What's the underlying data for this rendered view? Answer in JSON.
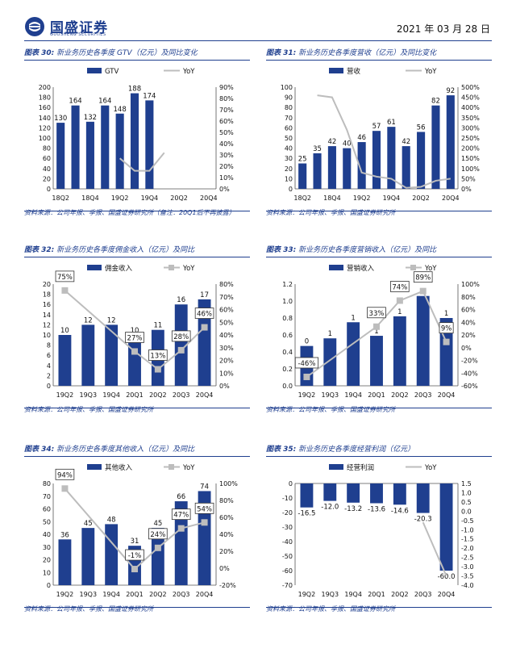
{
  "header": {
    "brand_cn": "国盛证券",
    "brand_en": "GUOSHENG SECURITIES",
    "date": "2021 年 03 月 28 日"
  },
  "colors": {
    "bar": "#1f3f8f",
    "yoy": "#bdbdbd",
    "rule": "#1f3f8f"
  },
  "panels": [
    {
      "fig": "图表 30:",
      "title": "新业务历史各季度 GTV（亿元）及同比变化",
      "source": "资料来源：公司年报、季报、国盛证券研究所（备注：20Q1后不再披露）",
      "chart_data": {
        "type": "bar+line",
        "categories": [
          "18Q2",
          "18Q3",
          "18Q4",
          "19Q1",
          "19Q2",
          "19Q3",
          "19Q4",
          "20Q1",
          "20Q2",
          "20Q3",
          "20Q4"
        ],
        "tick_labels": [
          "18Q2",
          "18Q4",
          "19Q2",
          "19Q4",
          "20Q2",
          "20Q4"
        ],
        "bar_series": {
          "name": "GTV",
          "values": [
            130,
            164,
            132,
            164,
            148,
            188,
            174,
            null,
            null,
            null,
            null
          ]
        },
        "line_series": {
          "name": "YoY",
          "values": [
            null,
            null,
            null,
            null,
            0.27,
            0.16,
            0.16,
            0.32,
            null,
            null,
            null
          ]
        },
        "bar_labels": [
          "130",
          "164",
          "132",
          "164",
          "148",
          "188",
          "174",
          "",
          "",
          "",
          ""
        ],
        "y_left": [
          0,
          200,
          20
        ],
        "y_right": [
          0,
          90,
          10
        ],
        "y_right_fmt": "pct"
      }
    },
    {
      "fig": "图表 31:",
      "title": "新业务历史各季度营收（亿元）及同比变化",
      "source": "资料来源：公司年报、季报、国盛证券研究所",
      "chart_data": {
        "type": "bar+line",
        "categories": [
          "18Q2",
          "18Q3",
          "18Q4",
          "19Q1",
          "19Q2",
          "19Q3",
          "19Q4",
          "20Q1",
          "20Q2",
          "20Q3",
          "20Q4"
        ],
        "tick_labels": [
          "18Q2",
          "18Q4",
          "19Q2",
          "19Q4",
          "20Q2",
          "20Q4"
        ],
        "bar_series": {
          "name": "营收",
          "values": [
            25,
            35,
            42,
            40,
            46,
            57,
            61,
            42,
            56,
            82,
            92
          ]
        },
        "line_series": {
          "name": "YoY",
          "values": [
            null,
            4.6,
            4.5,
            2.9,
            0.8,
            0.6,
            0.5,
            0.05,
            0.1,
            0.4,
            0.5
          ]
        },
        "bar_labels": [
          "25",
          "35",
          "42",
          "40",
          "46",
          "57",
          "61",
          "42",
          "56",
          "82",
          "92"
        ],
        "y_left": [
          0,
          100,
          10
        ],
        "y_right": [
          0,
          5,
          0.5
        ],
        "y_right_fmt": "pct"
      }
    },
    {
      "fig": "图表 32:",
      "title": "新业务历史各季度佣金收入（亿元）及同比",
      "source": "资料来源：公司年报、季报、国盛证券研究所",
      "chart_data": {
        "type": "bar+line",
        "categories": [
          "19Q2",
          "19Q3",
          "19Q4",
          "20Q1",
          "20Q2",
          "20Q3",
          "20Q4"
        ],
        "tick_labels": [
          "19Q2",
          "19Q3",
          "19Q4",
          "20Q1",
          "20Q2",
          "20Q3",
          "20Q4"
        ],
        "bar_series": {
          "name": "佣金收入",
          "values": [
            10,
            12,
            12,
            10,
            11,
            16,
            17
          ]
        },
        "line_series": {
          "name": "YoY",
          "values": [
            0.75,
            null,
            null,
            0.27,
            0.13,
            0.28,
            0.46
          ]
        },
        "bar_labels": [
          "10",
          "12",
          "12",
          "10",
          "11",
          "16",
          "17"
        ],
        "point_labels": [
          "75%",
          "",
          "",
          "27%",
          "13%",
          "28%",
          "46%"
        ],
        "y_left": [
          0,
          20,
          2
        ],
        "y_right": [
          0,
          80,
          10
        ],
        "y_right_fmt": "pct"
      }
    },
    {
      "fig": "图表 33:",
      "title": "新业务历史各季度营销收入（亿元）及同比",
      "source": "资料来源：公司年报、季报、国盛证券研究所",
      "chart_data": {
        "type": "bar+line",
        "categories": [
          "19Q2",
          "19Q3",
          "19Q4",
          "20Q1",
          "20Q2",
          "20Q3",
          "20Q4"
        ],
        "tick_labels": [
          "19Q2",
          "19Q3",
          "19Q4",
          "20Q1",
          "20Q2",
          "20Q3",
          "20Q4"
        ],
        "bar_series": {
          "name": "营销收入",
          "values": [
            0.47,
            0.56,
            0.75,
            0.59,
            0.82,
            1.06,
            0.8
          ]
        },
        "line_series": {
          "name": "YoY",
          "values": [
            -0.46,
            null,
            null,
            0.33,
            0.74,
            0.89,
            0.09
          ]
        },
        "bar_labels": [
          "0",
          "1",
          "1",
          "1",
          "1",
          "1",
          "1"
        ],
        "point_labels": [
          "-46%",
          "",
          "",
          "33%",
          "74%",
          "89%",
          "9%"
        ],
        "y_left": [
          0,
          1.2,
          0.2
        ],
        "y_right": [
          -60,
          100,
          20
        ],
        "y_right_fmt": "pct"
      }
    },
    {
      "fig": "图表 34:",
      "title": "新业务历史各季度其他收入（亿元）及同比",
      "source": "资料来源：公司年报、季报、国盛证券研究所",
      "chart_data": {
        "type": "bar+line",
        "categories": [
          "19Q2",
          "19Q3",
          "19Q4",
          "20Q1",
          "20Q2",
          "20Q3",
          "20Q4"
        ],
        "tick_labels": [
          "19Q2",
          "19Q3",
          "19Q4",
          "20Q1",
          "20Q2",
          "20Q3",
          "20Q4"
        ],
        "bar_series": {
          "name": "其他收入",
          "values": [
            36,
            45,
            48,
            31,
            45,
            66,
            74
          ]
        },
        "line_series": {
          "name": "YoY",
          "values": [
            0.94,
            null,
            null,
            -0.01,
            0.24,
            0.47,
            0.54
          ]
        },
        "bar_labels": [
          "36",
          "45",
          "48",
          "31",
          "45",
          "66",
          "74"
        ],
        "point_labels": [
          "94%",
          "",
          "",
          "-1%",
          "24%",
          "47%",
          "54%"
        ],
        "y_left": [
          0,
          80,
          10
        ],
        "y_right": [
          -20,
          100,
          20
        ],
        "y_right_fmt": "pct"
      }
    },
    {
      "fig": "图表 35:",
      "title": "新业务历史各季度经营利润（亿元）",
      "source": "资料来源：公司年报、季报、国盛证券研究所",
      "chart_data": {
        "type": "bar+line",
        "categories": [
          "19Q2",
          "19Q3",
          "19Q4",
          "20Q1",
          "20Q2",
          "20Q3",
          "20Q4"
        ],
        "tick_labels": [
          "19Q2",
          "19Q3",
          "19Q4",
          "20Q1",
          "20Q2",
          "20Q3",
          "20Q4"
        ],
        "bar_series": {
          "name": "经营利润",
          "values": [
            -16.5,
            -12.0,
            -13.2,
            -13.6,
            -14.6,
            -20.3,
            -60.0
          ]
        },
        "line_series": {
          "name": "YoY",
          "values": [
            null,
            null,
            null,
            null,
            null,
            -0.6,
            -3.5
          ]
        },
        "bar_labels": [
          "-16.5",
          "-12.0",
          "-13.2",
          "-13.6",
          "-14.6",
          "-20.3",
          "-60.0"
        ],
        "y_left": [
          -70,
          0,
          10
        ],
        "y_right": [
          -4,
          1.5,
          0.5
        ],
        "y_right_fmt": "num",
        "bars_from_top": true
      }
    }
  ]
}
